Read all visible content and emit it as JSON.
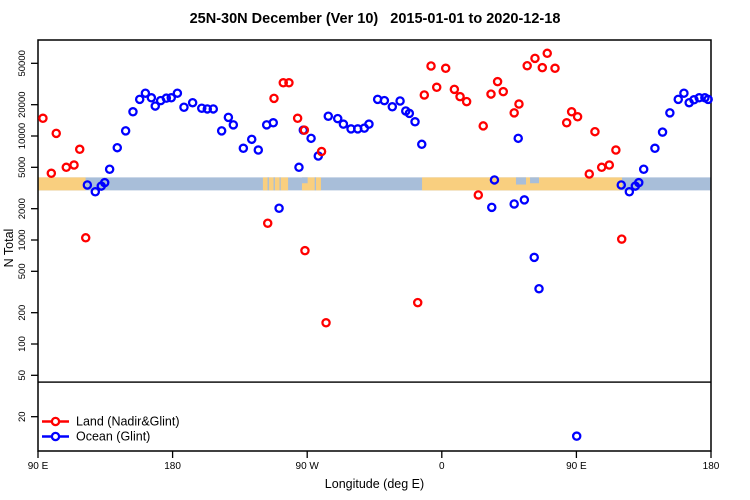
{
  "title": "25N-30N December (Ver 10)   2015-01-01 to 2020-12-18",
  "chart_data": {
    "type": "scatter",
    "title": "25N-30N December (Ver 10)   2015-01-01 to 2020-12-18",
    "xlabel": "Longitude (deg E)",
    "ylabel": "N Total",
    "x_axis": {
      "min": 90,
      "max": 540,
      "ticks": [
        90,
        180,
        270,
        360,
        450,
        540
      ],
      "tick_labels": [
        "90 E",
        "180",
        "90 W",
        "0",
        "90 E",
        "180"
      ],
      "note": "longitude wraps: axis spans 450 deg starting at 90E"
    },
    "y_axis": {
      "scale": "log10",
      "min": 9.5,
      "max": 83000,
      "ticks": [
        20,
        50,
        100,
        200,
        500,
        1000,
        2000,
        5000,
        10000,
        20000,
        50000
      ],
      "tick_labels": [
        "20",
        "50",
        "100",
        "200",
        "500",
        "1000",
        "2000",
        "5000",
        "10000",
        "20000",
        "50000"
      ]
    },
    "reference_line_n": 43,
    "land_ocean_band": {
      "n_top": 4000,
      "n_bottom": 3000,
      "ocean_color": "#A8BED9",
      "land_color": "#F9CF7F",
      "segments": [
        {
          "surface": "land",
          "from": 90,
          "to": 121.8
        },
        {
          "surface": "ocean",
          "from": 121.8,
          "to": 240.4
        },
        {
          "surface": "land",
          "from": 240.4,
          "to": 257.2
        },
        {
          "surface": "ocean",
          "from": 257.2,
          "to": 266.5
        },
        {
          "surface": "land",
          "from": 266.5,
          "to": 279.2
        },
        {
          "surface": "ocean",
          "from": 279.2,
          "to": 346.8
        },
        {
          "surface": "land",
          "from": 346.8,
          "to": 480.5
        },
        {
          "surface": "ocean",
          "from": 480.5,
          "to": 540
        }
      ],
      "water_details": [
        {
          "from": 243.5,
          "to": 244.4,
          "depth": 1
        },
        {
          "from": 247.5,
          "to": 248.4,
          "depth": 1
        },
        {
          "from": 251.5,
          "to": 252.3,
          "depth": 1
        },
        {
          "from": 266.5,
          "to": 270.3,
          "depth": 0.45
        },
        {
          "from": 275.0,
          "to": 275.9,
          "depth": 1
        },
        {
          "from": 409.6,
          "to": 416.3,
          "depth": 0.55
        },
        {
          "from": 419.0,
          "to": 425.0,
          "depth": 0.45
        }
      ]
    },
    "legend": {
      "position": "bottom-left",
      "entries": [
        "Land (Nadir&Glint)",
        "Ocean (Glint)"
      ]
    },
    "series": [
      {
        "name": "Land (Nadir&Glint)",
        "color": "#FF0000",
        "points": [
          [
            93.3,
            14800
          ],
          [
            98.9,
            4380
          ],
          [
            102.2,
            10600
          ],
          [
            108.9,
            5000
          ],
          [
            114.1,
            5260
          ],
          [
            117.9,
            7450
          ],
          [
            121.9,
            1050
          ],
          [
            243.6,
            1450
          ],
          [
            247.8,
            23000
          ],
          [
            254.0,
            32500
          ],
          [
            257.8,
            32500
          ],
          [
            263.6,
            14800
          ],
          [
            268.1,
            11400
          ],
          [
            268.5,
            790
          ],
          [
            279.6,
            7090
          ],
          [
            282.6,
            160
          ],
          [
            343.9,
            250
          ],
          [
            348.3,
            24800
          ],
          [
            352.8,
            47100
          ],
          [
            356.6,
            29400
          ],
          [
            362.6,
            44800
          ],
          [
            368.4,
            28100
          ],
          [
            372.2,
            23900
          ],
          [
            376.6,
            21400
          ],
          [
            384.4,
            2710
          ],
          [
            387.7,
            12500
          ],
          [
            392.9,
            25300
          ],
          [
            397.3,
            33300
          ],
          [
            401.1,
            26700
          ],
          [
            408.4,
            16700
          ],
          [
            411.6,
            20300
          ],
          [
            417.1,
            47400
          ],
          [
            422.3,
            55800
          ],
          [
            427.2,
            45400
          ],
          [
            430.5,
            62400
          ],
          [
            435.7,
            44800
          ],
          [
            443.5,
            13400
          ],
          [
            446.8,
            17100
          ],
          [
            450.8,
            15300
          ],
          [
            458.6,
            4310
          ],
          [
            462.4,
            11000
          ],
          [
            466.9,
            5000
          ],
          [
            472.0,
            5260
          ],
          [
            476.4,
            7330
          ],
          [
            480.3,
            1020
          ]
        ]
      },
      {
        "name": "Ocean (Glint)",
        "color": "#0000FF",
        "points": [
          [
            123.0,
            3380
          ],
          [
            128.3,
            2910
          ],
          [
            132.3,
            3300
          ],
          [
            134.6,
            3560
          ],
          [
            137.9,
            4790
          ],
          [
            143.0,
            7720
          ],
          [
            148.6,
            11200
          ],
          [
            153.5,
            17100
          ],
          [
            158.0,
            22500
          ],
          [
            161.8,
            25800
          ],
          [
            165.8,
            23300
          ],
          [
            168.4,
            19400
          ],
          [
            172.0,
            21900
          ],
          [
            175.8,
            23100
          ],
          [
            179.1,
            23300
          ],
          [
            183.2,
            25800
          ],
          [
            187.6,
            18900
          ],
          [
            193.4,
            20900
          ],
          [
            199.5,
            18500
          ],
          [
            203.2,
            18200
          ],
          [
            207.2,
            18200
          ],
          [
            212.8,
            11200
          ],
          [
            217.3,
            15100
          ],
          [
            220.6,
            12800
          ],
          [
            227.3,
            7620
          ],
          [
            232.9,
            9290
          ],
          [
            237.3,
            7330
          ],
          [
            242.9,
            12800
          ],
          [
            247.3,
            13400
          ],
          [
            251.2,
            2020
          ],
          [
            264.5,
            5000
          ],
          [
            267.4,
            11400
          ],
          [
            272.6,
            9500
          ],
          [
            277.4,
            6420
          ],
          [
            284.1,
            15500
          ],
          [
            290.4,
            14700
          ],
          [
            294.2,
            13000
          ],
          [
            299.3,
            11700
          ],
          [
            303.8,
            11700
          ],
          [
            308.2,
            11900
          ],
          [
            311.3,
            13000
          ],
          [
            317.1,
            22500
          ],
          [
            321.6,
            21900
          ],
          [
            326.9,
            19100
          ],
          [
            332.1,
            21700
          ],
          [
            335.9,
            17400
          ],
          [
            338.3,
            16500
          ],
          [
            342.1,
            13700
          ],
          [
            346.6,
            8320
          ],
          [
            393.4,
            2060
          ],
          [
            395.2,
            3780
          ],
          [
            408.4,
            2220
          ],
          [
            411.1,
            9500
          ],
          [
            415.2,
            2430
          ],
          [
            421.8,
            680
          ],
          [
            425.0,
            340
          ],
          [
            450.2,
            13
          ],
          [
            480.0,
            3380
          ],
          [
            485.4,
            2910
          ],
          [
            489.4,
            3300
          ],
          [
            491.7,
            3560
          ],
          [
            495.0,
            4790
          ],
          [
            502.5,
            7620
          ],
          [
            507.6,
            10900
          ],
          [
            512.5,
            16700
          ],
          [
            518.1,
            22500
          ],
          [
            521.9,
            25800
          ],
          [
            525.4,
            20900
          ],
          [
            528.6,
            22300
          ],
          [
            532.1,
            23300
          ],
          [
            535.9,
            23300
          ],
          [
            538.1,
            22500
          ]
        ]
      }
    ]
  }
}
